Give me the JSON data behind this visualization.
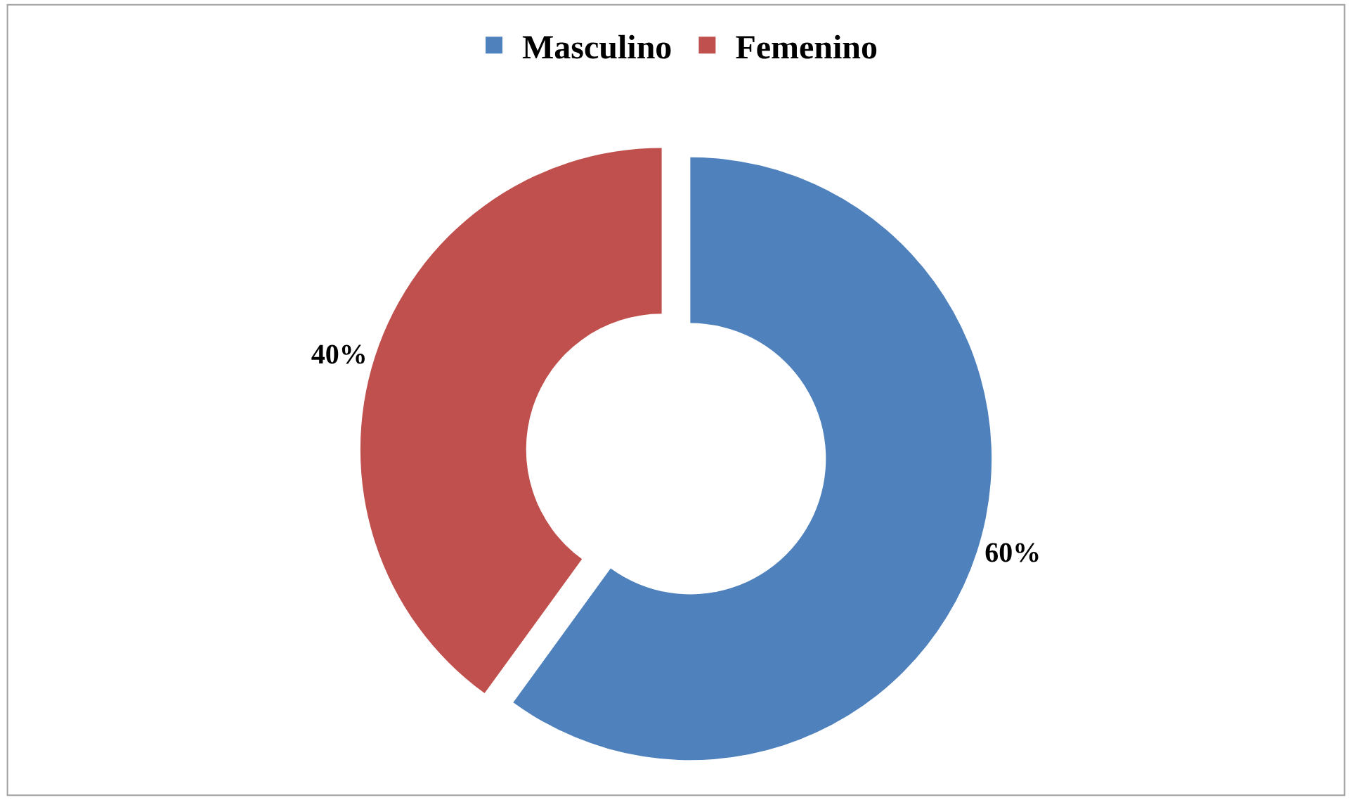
{
  "chart_data": {
    "type": "donut",
    "categories": [
      "Masculino",
      "Femenino"
    ],
    "values": [
      60,
      40
    ],
    "colors": [
      "#4f81bd",
      "#c0504d"
    ],
    "value_labels": [
      "60%",
      "40%"
    ],
    "legend": "top"
  }
}
